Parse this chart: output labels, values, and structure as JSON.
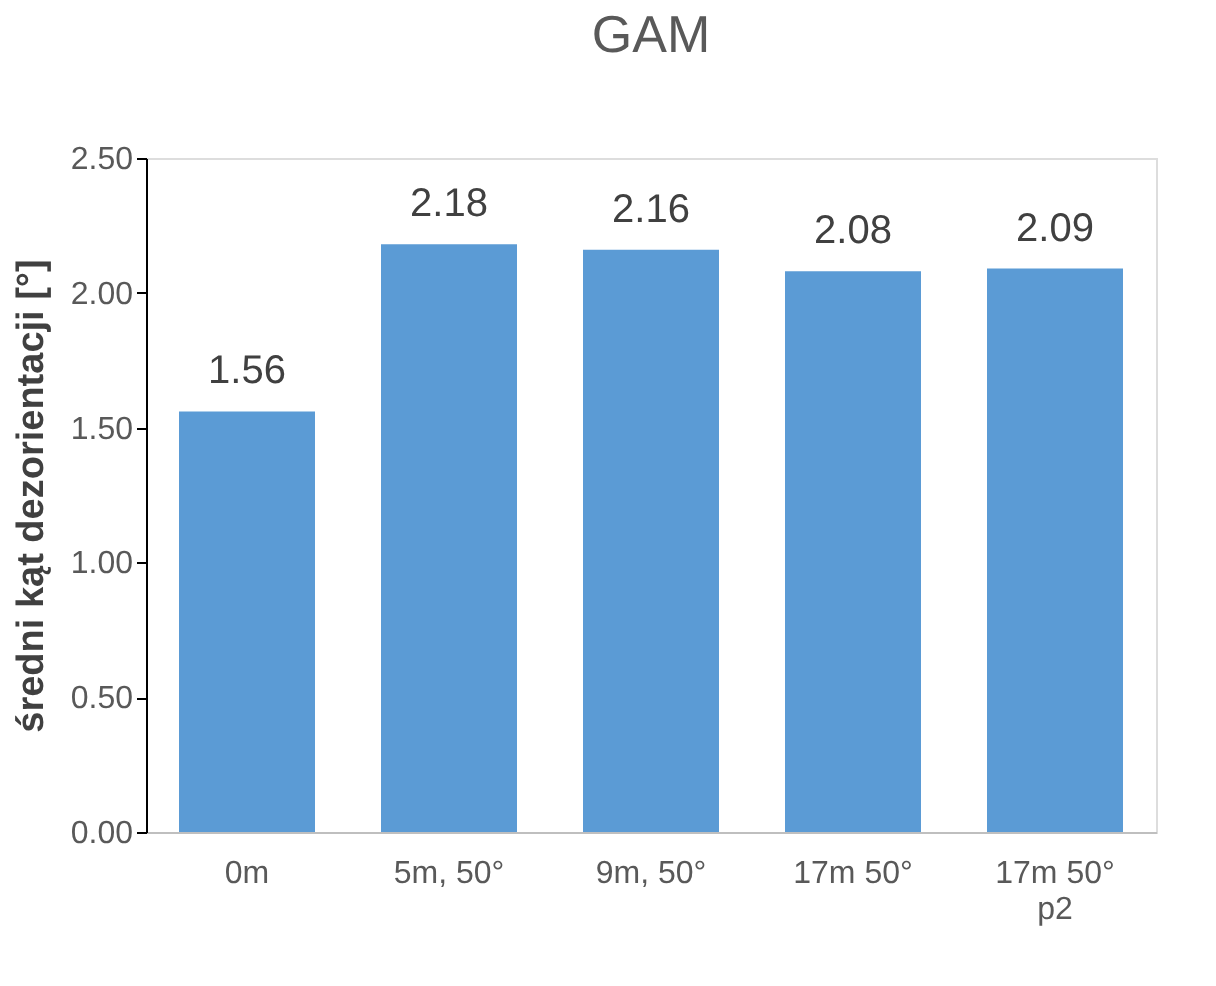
{
  "chart_data": {
    "type": "bar",
    "title": "GAM",
    "ylabel": "średni kąt dezorientacji [°]",
    "categories": [
      "0m",
      "5m, 50°",
      "9m, 50°",
      "17m 50°",
      "17m 50° p2"
    ],
    "values": [
      1.56,
      2.18,
      2.16,
      2.08,
      2.09
    ],
    "color": "#5b9bd5",
    "ylim": [
      0,
      2.5
    ],
    "yticks": [
      {
        "value": 0,
        "label": "0.00"
      },
      {
        "value": 0.5,
        "label": "0.50"
      },
      {
        "value": 1,
        "label": "1.00"
      },
      {
        "value": 1.5,
        "label": "1.50"
      },
      {
        "value": 2,
        "label": "2.00"
      },
      {
        "value": 2.5,
        "label": "2.50"
      }
    ],
    "data_labels": true,
    "grid": false
  }
}
